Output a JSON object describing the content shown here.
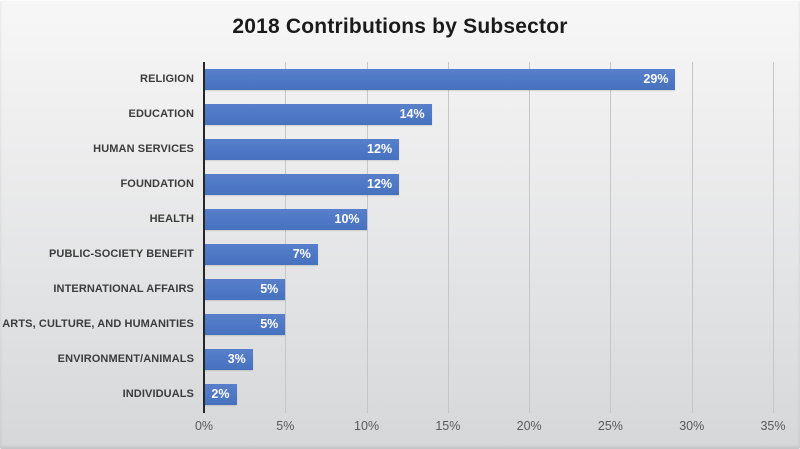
{
  "window": {
    "background_top": "#f7f7f7",
    "background_bottom": "#d6d7d9"
  },
  "chart_data": {
    "type": "bar",
    "orientation": "horizontal",
    "title": "2018 Contributions by Subsector",
    "categories": [
      "RELIGION",
      "EDUCATION",
      "HUMAN SERVICES",
      "FOUNDATION",
      "HEALTH",
      "PUBLIC-SOCIETY BENEFIT",
      "INTERNATIONAL AFFAIRS",
      "ARTS, CULTURE, AND HUMANITIES",
      "ENVIRONMENT/ANIMALS",
      "INDIVIDUALS"
    ],
    "values": [
      29,
      14,
      12,
      12,
      10,
      7,
      5,
      5,
      3,
      2
    ],
    "value_labels": [
      "29%",
      "14%",
      "12%",
      "12%",
      "10%",
      "7%",
      "5%",
      "5%",
      "3%",
      "2%"
    ],
    "x_ticks": [
      "0%",
      "5%",
      "10%",
      "15%",
      "20%",
      "25%",
      "30%",
      "35%"
    ],
    "x_tick_values": [
      0,
      5,
      10,
      15,
      20,
      25,
      30,
      35
    ],
    "xlim": [
      0,
      35
    ],
    "xlabel": "",
    "ylabel": "",
    "legend": "none",
    "grid": "vertical",
    "colors": {
      "bar": "#4e78c5",
      "gridline": "#c5c6c8",
      "axis_line": "#262626",
      "title_text": "#1b1b1b",
      "category_text": "#3c3c3c",
      "tick_text": "#595959",
      "value_text": "#ffffff"
    }
  }
}
